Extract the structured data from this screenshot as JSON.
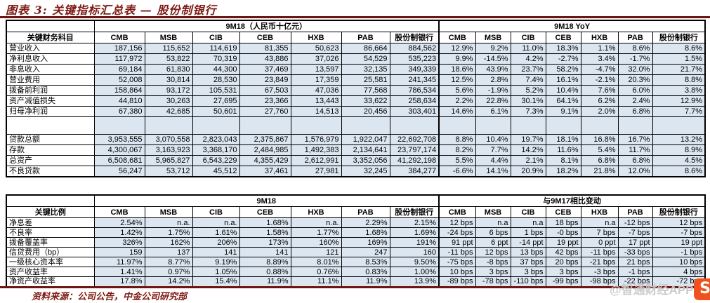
{
  "title": "图表 3: 关键指标汇总表 — 股份制银行",
  "colors": {
    "accent_maroon": "#7f1a13",
    "cell_fill_blue": "#dce6f1",
    "watermark_orange": "#f0511f",
    "border_black": "#000000"
  },
  "banks": [
    "CMB",
    "MSB",
    "CIB",
    "CEB",
    "HXB",
    "PAB",
    "股份制银行"
  ],
  "table1": {
    "label_header": "关键财务科目",
    "group_left": "9M18（人民币十亿元）",
    "group_right": "9M18 YoY",
    "rows": [
      {
        "label": "营业收入",
        "left": [
          "187,156",
          "115,652",
          "114,619",
          "81,355",
          "50,623",
          "86,664",
          "884,562"
        ],
        "right": [
          "12.9%",
          "9.2%",
          "11.0%",
          "18.3%",
          "1.1%",
          "8.6%",
          "8.6%"
        ]
      },
      {
        "label": "净利息收入",
        "left": [
          "117,972",
          "53,822",
          "70,319",
          "43,886",
          "37,026",
          "54,529",
          "535,223"
        ],
        "right": [
          "9.9%",
          "-14.5%",
          "4.2%",
          "-2.7%",
          "3.4%",
          "-1.7%",
          "1.5%"
        ]
      },
      {
        "label": "非息收入",
        "left": [
          "69,184",
          "61,830",
          "44,300",
          "37,469",
          "13,597",
          "32,135",
          "349,339"
        ],
        "right": [
          "18.6%",
          "43.9%",
          "23.7%",
          "58.2%",
          "-4.7%",
          "32.0%",
          "21.7%"
        ]
      },
      {
        "label": "营业费用",
        "left": [
          "52,008",
          "30,814",
          "28,530",
          "23,849",
          "17,359",
          "25,581",
          "241,345"
        ],
        "right": [
          "12.5%",
          "2.8%",
          "7.4%",
          "16.1%",
          "-2.1%",
          "20.3%",
          "8.8%"
        ]
      },
      {
        "label": "拨备前利润",
        "left": [
          "158,864",
          "93,172",
          "105,531",
          "67,503",
          "47,036",
          "77,568",
          "786,534"
        ],
        "right": [
          "5.6%",
          "-1.9%",
          "5.2%",
          "10.4%",
          "7.6%",
          "6.0%",
          "3.8%"
        ]
      },
      {
        "label": "资产减值损失",
        "left": [
          "44,810",
          "30,263",
          "27,695",
          "23,366",
          "13,443",
          "33,622",
          "258,634"
        ],
        "right": [
          "2.2%",
          "22.8%",
          "30.1%",
          "64.1%",
          "6.2%",
          "2.4%",
          "12.9%"
        ]
      },
      {
        "label": "归母净利润",
        "left": [
          "67,380",
          "42,685",
          "50,601",
          "27,760",
          "14,513",
          "20,456",
          "303,401"
        ],
        "right": [
          "14.6%",
          "6.1%",
          "7.3%",
          "9.1%",
          "2.0%",
          "6.8%",
          "7.7%"
        ]
      },
      {
        "label": "",
        "spacer": true,
        "left": [
          "",
          "",
          "",
          "",
          "",
          "",
          ""
        ],
        "right": [
          "",
          "",
          "",
          "",
          "",
          "",
          ""
        ]
      },
      {
        "label": "贷款总额",
        "left": [
          "3,953,555",
          "3,070,558",
          "2,823,043",
          "2,375,867",
          "1,576,979",
          "1,922,047",
          "22,692,708"
        ],
        "right": [
          "8.8%",
          "10.4%",
          "19.7%",
          "18.1%",
          "16.8%",
          "16.7%",
          "13.2%"
        ]
      },
      {
        "label": "存款",
        "left": [
          "4,300,067",
          "3,163,923",
          "3,368,170",
          "2,484,985",
          "1,492,383",
          "2,134,641",
          "23,797,174"
        ],
        "right": [
          "8.2%",
          "7.7%",
          "14.2%",
          "11.6%",
          "5.4%",
          "11.7%",
          "8.9%"
        ]
      },
      {
        "label": "总资产",
        "left": [
          "6,508,681",
          "5,965,827",
          "6,543,229",
          "4,355,429",
          "2,612,991",
          "3,352,056",
          "41,292,198"
        ],
        "right": [
          "5.5%",
          "4.4%",
          "2.1%",
          "8.1%",
          "6.8%",
          "6.8%",
          "4.5%"
        ]
      },
      {
        "label": "不良贷款",
        "left": [
          "56,247",
          "53,712",
          "45,512",
          "37,461",
          "27,981",
          "32,245",
          "384,277"
        ],
        "right": [
          "-6.6%",
          "14.1%",
          "20.9%",
          "18.2%",
          "21.8%",
          "12.0%",
          "8.6%"
        ]
      }
    ]
  },
  "table2": {
    "label_header": "关键比例",
    "group_left": "9M18",
    "group_right": "与9M17相比变动",
    "rows": [
      {
        "label": "净息差",
        "left": [
          "2.54%",
          "n.a.",
          "n.a.",
          "1.68%",
          "n.a.",
          "2.29%",
          "2.15%"
        ],
        "right": [
          "12 bps",
          "n.a",
          "n.a",
          "18 bps",
          "n.a",
          "-12 bps",
          "12 bps"
        ]
      },
      {
        "label": "不良率",
        "left": [
          "1.42%",
          "1.75%",
          "1.61%",
          "1.58%",
          "1.77%",
          "1.68%",
          "1.69%"
        ],
        "right": [
          "-24 bps",
          "6 bps",
          "1 bps",
          "-0 bps",
          "7 bps",
          "-7 bps",
          "-7 bps"
        ]
      },
      {
        "label": "拨备覆盖率",
        "left": [
          "326%",
          "162%",
          "206%",
          "173%",
          "160%",
          "169%",
          "191%"
        ],
        "right": [
          "91 ppt",
          "6 ppt",
          "-14 ppt",
          "19 ppt",
          "0 ppt",
          "17 ppt",
          "19 ppt"
        ]
      },
      {
        "label": "信贷费用（bp）",
        "left": [
          "159",
          "137",
          "141",
          "141",
          "121",
          "247",
          "160"
        ],
        "right": [
          "-11 bps",
          "12 bps",
          "13 bps",
          "42 bps",
          "-11 bps",
          "-33 bps",
          "-1 bps"
        ]
      },
      {
        "label": "一级核心资本率",
        "left": [
          "11.97%",
          "8.77%",
          "9.19%",
          "8.89%",
          "8.01%",
          "8.53%",
          "9.50%"
        ],
        "right": [
          "-75 bps",
          "-8 bps",
          "37 bps",
          "20 bps",
          "-21 bps",
          "21 bps",
          "10 bps"
        ]
      },
      {
        "label": "资产收益率",
        "left": [
          "1.41%",
          "0.97%",
          "1.05%",
          "0.88%",
          "0.76%",
          "0.83%",
          "1.00%"
        ],
        "right": [
          "10 bps",
          "3 bps",
          "3 bps",
          "3 bps",
          "-3 bps",
          "-1 bps",
          "4 bps"
        ]
      },
      {
        "label": "净资产收益率",
        "left": [
          "17.8%",
          "14.2%",
          "15.4%",
          "11.9%",
          "11.1%",
          "11.9%",
          "13.9%"
        ],
        "right": [
          "-89 bps",
          "-78 bps",
          "-110 bps",
          "-99 bps",
          "-98 bps",
          "-22 bps",
          "-72 bps"
        ]
      }
    ]
  },
  "footer": {
    "source": "资料来源：公司公告，中金公司研究部"
  },
  "watermark": {
    "text": "@智通财经APP",
    "logo_glyph": "S"
  }
}
